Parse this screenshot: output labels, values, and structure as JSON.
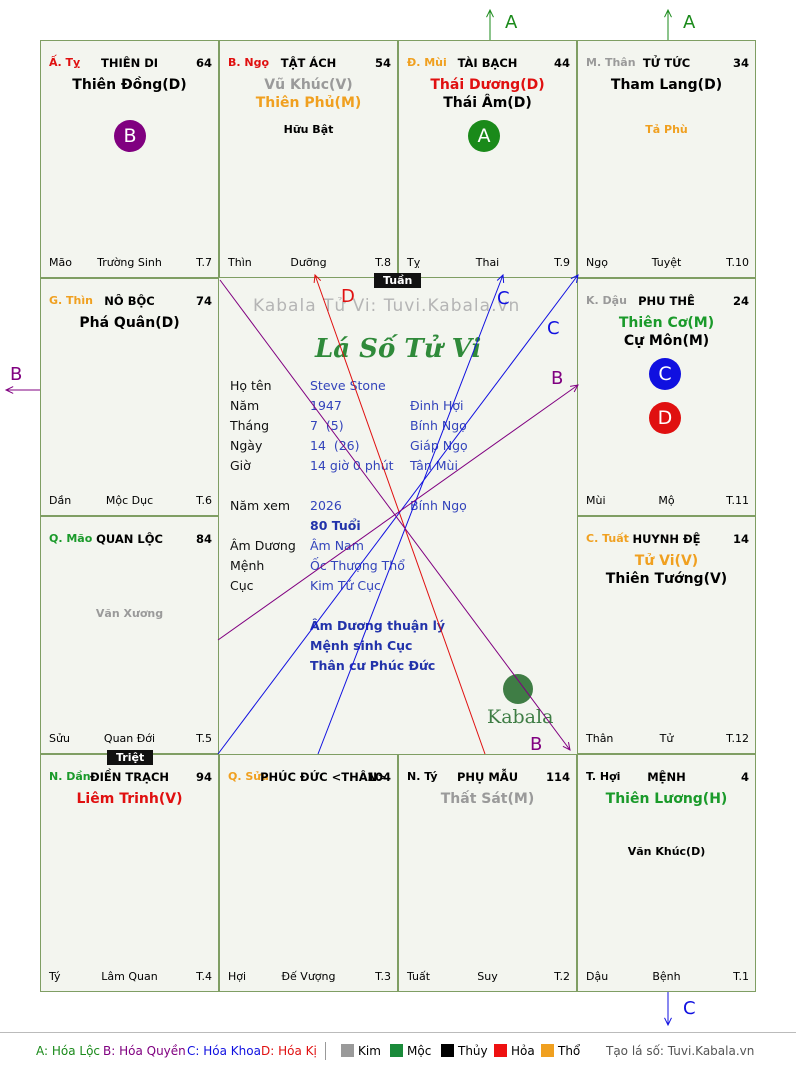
{
  "watermark": "Kabala Tử Vi: Tuvi.Kabala.vn",
  "center_title": "Lá Số Tử Vi",
  "logo_text": "Kabala",
  "tuan_label": "Tuần",
  "triet_label": "Triệt",
  "info": {
    "ho_ten_label": "Họ tên",
    "ho_ten": "Steve Stone",
    "nam_label": "Năm",
    "nam": "1947",
    "nam_can_chi": "Đinh Hợi",
    "thang_label": "Tháng",
    "thang": "7  (5)",
    "thang_can_chi": "Bính Ngọ",
    "ngay_label": "Ngày",
    "ngay": "14  (26)",
    "ngay_can_chi": "Giáp Ngọ",
    "gio_label": "Giờ",
    "gio": "14 giờ 0 phút",
    "gio_can_chi": "Tân Mùi",
    "nam_xem_label": "Năm xem",
    "nam_xem": "2026",
    "nam_xem_can_chi": "Bính Ngọ",
    "tuoi": "80 Tuổi",
    "am_duong_label": "Âm Dương",
    "am_duong": "Âm Nam",
    "menh_label": "Mệnh",
    "menh": "Ốc Thượng Thổ",
    "cuc_label": "Cục",
    "cuc": "Kim Tứ Cục",
    "note1": "Âm Dương thuận lý",
    "note2": "Mệnh sinh Cục",
    "note3": "Thân cư Phúc Đức"
  },
  "palaces": [
    {
      "stem": "Ấ. Tỵ",
      "name": "THIÊN DI",
      "score": "64",
      "stars": [
        {
          "t": "Thiên Đồng(D)",
          "c": "#000000"
        }
      ],
      "minor": [],
      "bl": "Mão",
      "bc": "Trường Sinh",
      "br": "T.7"
    },
    {
      "stem": "B. Ngọ",
      "name": "TẬT ÁCH",
      "score": "54",
      "stars": [
        {
          "t": "Vũ Khúc(V)",
          "c": "#9a9a9a"
        },
        {
          "t": "Thiên Phủ(M)",
          "c": "#f0a020"
        }
      ],
      "minor": [
        {
          "t": "Hữu Bật",
          "c": "#000000"
        }
      ],
      "bl": "Thìn",
      "bc": "Dưỡng",
      "br": "T.8"
    },
    {
      "stem": "Đ. Mùi",
      "name": "TÀI BẠCH",
      "score": "44",
      "stars": [
        {
          "t": "Thái Dương(D)",
          "c": "#e01010"
        },
        {
          "t": "Thái Âm(D)",
          "c": "#000000"
        }
      ],
      "minor": [],
      "bl": "Tỵ",
      "bc": "Thai",
      "br": "T.9"
    },
    {
      "stem": "M. Thân",
      "name": "TỬ TỨC",
      "score": "34",
      "stars": [
        {
          "t": "Tham Lang(D)",
          "c": "#000000"
        }
      ],
      "minor": [
        {
          "t": "Tả Phù",
          "c": "#f0a020"
        }
      ],
      "bl": "Ngọ",
      "bc": "Tuyệt",
      "br": "T.10"
    },
    {
      "stem": "G. Thìn",
      "name": "NÔ BỘC",
      "score": "74",
      "stars": [
        {
          "t": "Phá Quân(D)",
          "c": "#000000"
        }
      ],
      "minor": [],
      "bl": "Dần",
      "bc": "Mộc Dục",
      "br": "T.6"
    },
    {
      "stem": "K. Dậu",
      "name": "PHU THÊ",
      "score": "24",
      "stars": [
        {
          "t": "Thiên Cơ(M)",
          "c": "#1a9a2a"
        },
        {
          "t": "Cự Môn(M)",
          "c": "#000000"
        }
      ],
      "minor": [],
      "bl": "Mùi",
      "bc": "Mộ",
      "br": "T.11"
    },
    {
      "stem": "Q. Mão",
      "name": "QUAN LỘC",
      "score": "84",
      "stars": [],
      "minor": [
        {
          "t": "Văn Xương",
          "c": "#9a9a9a"
        }
      ],
      "bl": "Sửu",
      "bc": "Quan Đới",
      "br": "T.5"
    },
    {
      "stem": "C. Tuất",
      "name": "HUYNH ĐỆ",
      "score": "14",
      "stars": [
        {
          "t": "Tử Vi(V)",
          "c": "#f0a020"
        },
        {
          "t": "Thiên Tướng(V)",
          "c": "#000000"
        }
      ],
      "minor": [],
      "bl": "Thân",
      "bc": "Tử",
      "br": "T.12"
    },
    {
      "stem": "N. Dần",
      "name": "ĐIỀN TRẠCH",
      "score": "94",
      "stars": [
        {
          "t": "Liêm Trinh(V)",
          "c": "#e01010"
        }
      ],
      "minor": [],
      "bl": "Tý",
      "bc": "Lâm Quan",
      "br": "T.4"
    },
    {
      "stem": "Q. Sửu",
      "name": "PHÚC ĐỨC <THÂN>",
      "score": "104",
      "stars": [],
      "minor": [],
      "bl": "Hợi",
      "bc": "Đế Vượng",
      "br": "T.3"
    },
    {
      "stem": "N. Tý",
      "name": "PHỤ MẪU",
      "score": "114",
      "stars": [
        {
          "t": "Thất Sát(M)",
          "c": "#9a9a9a"
        }
      ],
      "minor": [],
      "bl": "Tuất",
      "bc": "Suy",
      "br": "T.2"
    },
    {
      "stem": "T. Hợi",
      "name": "MỆNH",
      "score": "4",
      "stars": [
        {
          "t": "Thiên Lương(H)",
          "c": "#1a9a2a"
        }
      ],
      "minor": [
        {
          "t": "Văn Khúc(D)",
          "c": "#000000"
        }
      ],
      "bl": "Dậu",
      "bc": "Bệnh",
      "br": "T.1"
    }
  ],
  "stem_colors": [
    "#e01010",
    "#e01010",
    "#f0a020",
    "#9a9a9a",
    "#f0a020",
    "#9a9a9a",
    "#1a9a2a",
    "#f0a020",
    "#1a9a2a",
    "#f0a020",
    "#000000",
    "#000000"
  ],
  "circles": [
    {
      "label": "B",
      "color": "#800080"
    },
    {
      "label": "A",
      "color": "#1a8a1a"
    },
    {
      "label": "C",
      "color": "#1010e0"
    },
    {
      "label": "D",
      "color": "#e01010"
    }
  ],
  "arrow_labels": {
    "A": "A",
    "B": "B",
    "C": "C",
    "D": "D"
  },
  "legend": {
    "a": "A: Hóa Lộc",
    "b": "B: Hóa Quyền",
    "c": "C: Hóa Khoa",
    "d": "D: Hóa Kị",
    "kim": "Kim",
    "moc": "Mộc",
    "thuy": "Thủy",
    "hoa": "Hỏa",
    "tho": "Thổ",
    "credit": "Tạo lá số: Tuvi.Kabala.vn"
  },
  "legend_colors": {
    "a": "#1a8a1a",
    "b": "#800080",
    "c": "#1010e0",
    "d": "#e01010",
    "kim": "#9a9a9a",
    "moc": "#1a8a3a",
    "thuy": "#000000",
    "hoa": "#ee1111",
    "tho": "#f0a020"
  }
}
